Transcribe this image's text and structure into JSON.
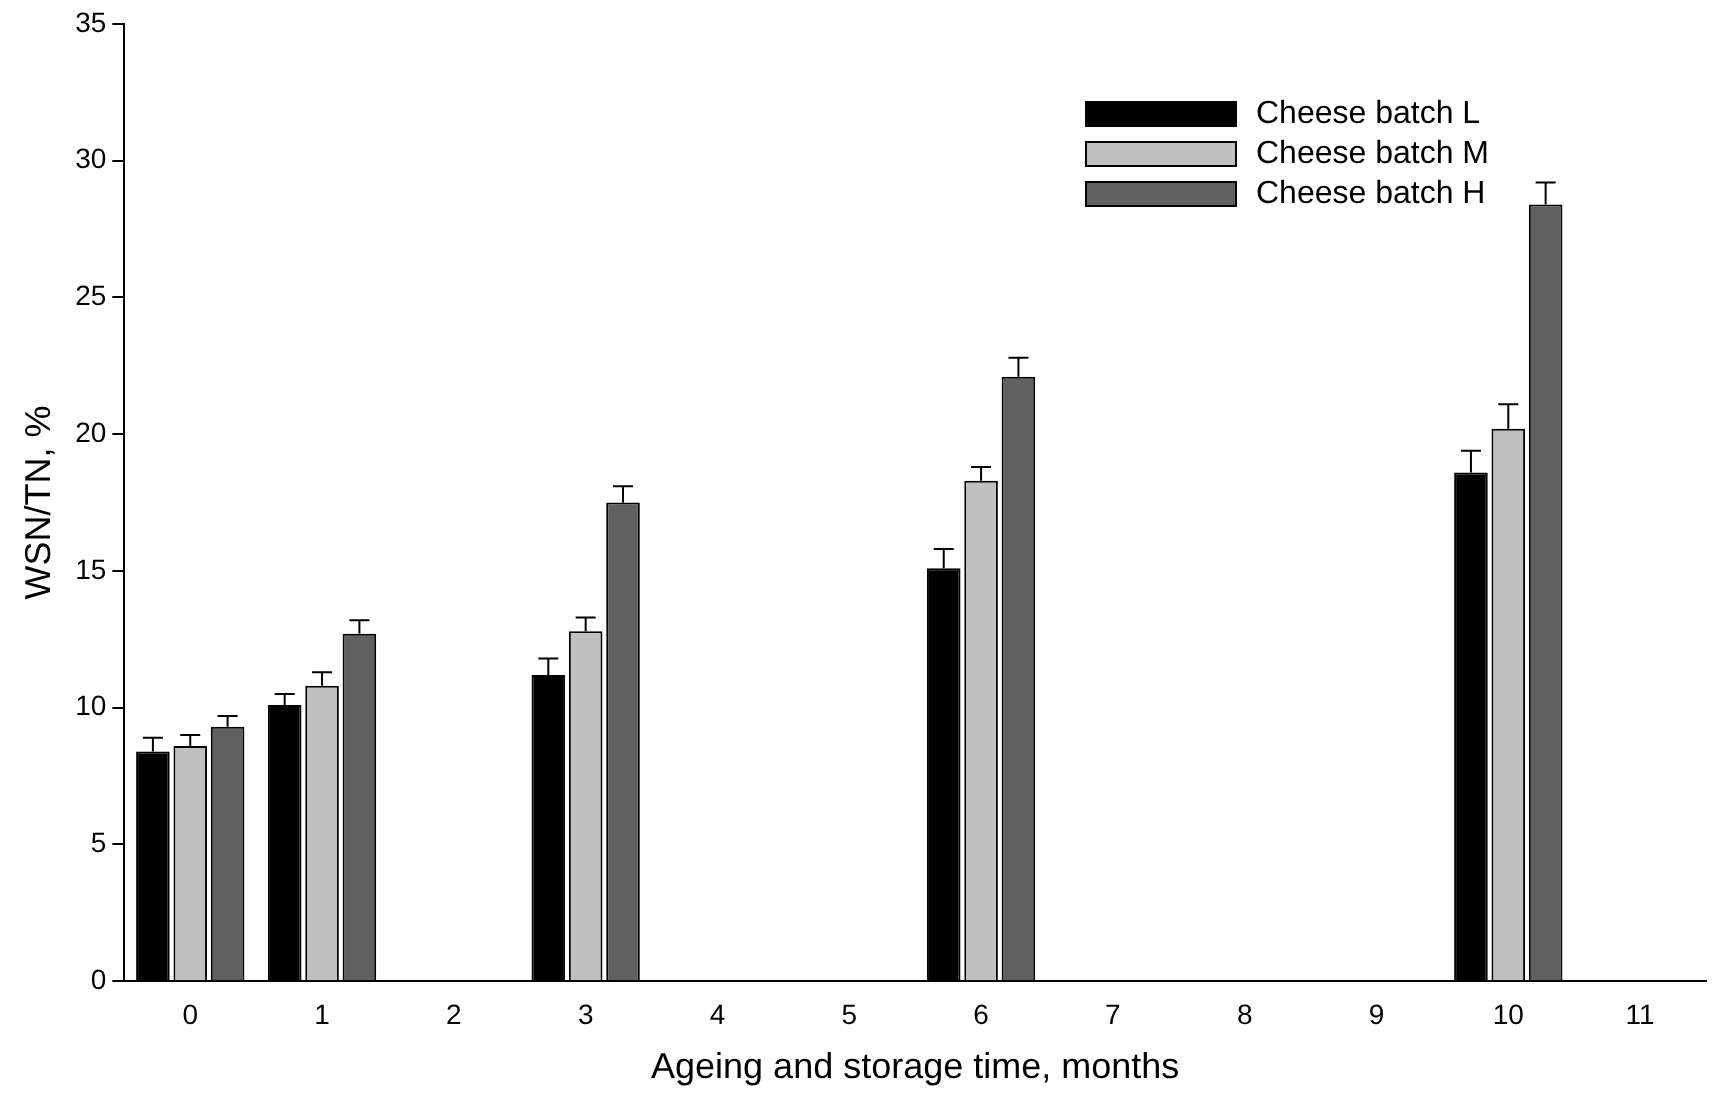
{
  "chart_data": {
    "type": "bar",
    "xlabel": "Ageing and storage time, months",
    "ylabel": "WSN/TN, %",
    "categories": [
      "0",
      "1",
      "2",
      "3",
      "4",
      "5",
      "6",
      "7",
      "8",
      "9",
      "10",
      "11"
    ],
    "series": [
      {
        "name": "Cheese batch L",
        "color": "#000000",
        "values": [
          8.4,
          10.1,
          null,
          11.2,
          null,
          null,
          15.1,
          null,
          null,
          null,
          18.6,
          null
        ],
        "errors": [
          0.5,
          0.4,
          null,
          0.6,
          null,
          null,
          0.7,
          null,
          null,
          null,
          0.8,
          null
        ]
      },
      {
        "name": "Cheese batch M",
        "color": "#c0c0c0",
        "values": [
          8.6,
          10.8,
          null,
          12.8,
          null,
          null,
          18.3,
          null,
          null,
          null,
          20.2,
          null
        ],
        "errors": [
          0.4,
          0.5,
          null,
          0.5,
          null,
          null,
          0.5,
          null,
          null,
          null,
          0.9,
          null
        ]
      },
      {
        "name": "Cheese batch H",
        "color": "#606060",
        "values": [
          9.3,
          12.7,
          null,
          17.5,
          null,
          null,
          22.1,
          null,
          null,
          null,
          28.4,
          null
        ],
        "errors": [
          0.4,
          0.5,
          null,
          0.6,
          null,
          null,
          0.7,
          null,
          null,
          null,
          0.8,
          null
        ]
      }
    ],
    "ylim": [
      0,
      35
    ],
    "yticks": [
      0,
      5,
      10,
      15,
      20,
      25,
      30,
      35
    ],
    "legend": "top right"
  }
}
